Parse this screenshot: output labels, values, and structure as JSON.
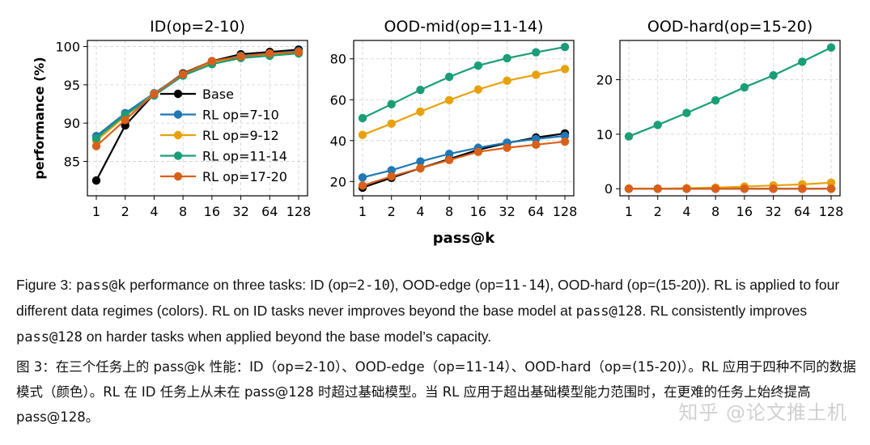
{
  "chart_data": [
    {
      "type": "line",
      "title": "ID(op=2-10)",
      "xlabel": "",
      "ylabel": "performance (%)",
      "x": [
        "1",
        "2",
        "4",
        "8",
        "16",
        "32",
        "64",
        "128"
      ],
      "yticks": [
        85,
        90,
        95,
        100
      ],
      "ylim": [
        80.5,
        100.8
      ],
      "grid": true,
      "legend": "center-left",
      "series": [
        {
          "name": "Base",
          "values": [
            82.5,
            89.7,
            93.8,
            96.5,
            98.1,
            99.0,
            99.3,
            99.6
          ]
        },
        {
          "name": "RL op=7-10",
          "values": [
            88.3,
            91.3,
            93.9,
            96.4,
            98.0,
            98.8,
            99.1,
            99.4
          ]
        },
        {
          "name": "RL op=9-12",
          "values": [
            87.7,
            90.9,
            93.8,
            96.3,
            97.9,
            98.7,
            99.0,
            99.2
          ]
        },
        {
          "name": "RL op=11-14",
          "values": [
            88.0,
            91.1,
            93.6,
            96.2,
            97.7,
            98.5,
            98.8,
            99.1
          ]
        },
        {
          "name": "RL op=17-20",
          "values": [
            87.0,
            90.4,
            93.8,
            96.4,
            98.1,
            98.7,
            99.1,
            99.3
          ]
        }
      ]
    },
    {
      "type": "line",
      "title": "OOD-mid(op=11-14)",
      "xlabel": "pass@k",
      "ylabel": "",
      "x": [
        "1",
        "2",
        "4",
        "8",
        "16",
        "32",
        "64",
        "128"
      ],
      "yticks": [
        20,
        40,
        60,
        80
      ],
      "ylim": [
        13,
        89
      ],
      "grid": true,
      "series": [
        {
          "name": "Base",
          "values": [
            17.0,
            21.8,
            26.5,
            31.0,
            35.5,
            38.8,
            41.5,
            43.5
          ]
        },
        {
          "name": "RL op=7-10",
          "values": [
            22.0,
            25.5,
            29.8,
            33.5,
            36.5,
            39.0,
            40.8,
            42.3
          ]
        },
        {
          "name": "RL op=9-12",
          "values": [
            42.8,
            48.3,
            54.2,
            59.8,
            65.0,
            69.3,
            72.2,
            75.0
          ]
        },
        {
          "name": "RL op=11-14",
          "values": [
            51.0,
            57.8,
            64.8,
            71.2,
            76.7,
            80.3,
            83.2,
            85.8
          ]
        },
        {
          "name": "RL op=17-20",
          "values": [
            18.0,
            22.5,
            26.5,
            30.5,
            34.5,
            36.5,
            38.0,
            39.5
          ]
        }
      ]
    },
    {
      "type": "line",
      "title": "OOD-hard(op=15-20)",
      "xlabel": "",
      "ylabel": "",
      "x": [
        "1",
        "2",
        "4",
        "8",
        "16",
        "32",
        "64",
        "128"
      ],
      "yticks": [
        0,
        10,
        20
      ],
      "ylim": [
        -1.3,
        27.2
      ],
      "grid": true,
      "series": [
        {
          "name": "Base",
          "values": [
            0.0,
            0.0,
            0.0,
            0.0,
            0.0,
            0.0,
            0.0,
            0.0
          ]
        },
        {
          "name": "RL op=7-10",
          "values": [
            0.0,
            0.0,
            0.0,
            0.0,
            0.0,
            0.0,
            0.0,
            0.0
          ]
        },
        {
          "name": "RL op=9-12",
          "values": [
            0.0,
            0.0,
            0.1,
            0.2,
            0.4,
            0.6,
            0.8,
            1.1
          ]
        },
        {
          "name": "RL op=11-14",
          "values": [
            9.6,
            11.7,
            13.9,
            16.2,
            18.6,
            20.8,
            23.3,
            25.9
          ]
        },
        {
          "name": "RL op=17-20",
          "values": [
            0.0,
            0.0,
            0.0,
            0.0,
            0.0,
            0.0,
            0.0,
            0.0
          ]
        }
      ]
    }
  ],
  "colors": {
    "Base": "#000000",
    "RL op=7-10": "#1f77b4",
    "RL op=9-12": "#e8a10c",
    "RL op=11-14": "#1a9e77",
    "RL op=17-20": "#d9601a"
  },
  "caption_en": {
    "prefix": "Figure 3: ",
    "passk": "pass@k",
    "part1": " performance on three tasks: ID (op=",
    "r1": "2-10",
    "part2": "), OOD-edge (op=",
    "r2": "11-14",
    "part3": "), OOD-hard (op=(15-20)). RL is applied to four different data regimes (colors). RL on ID tasks never improves beyond the base model at ",
    "pass128a": "pass@128",
    "part4": ". RL consistently improves ",
    "pass128b": "pass@128",
    "part5": " on harder tasks when applied beyond the base model’s capacity."
  },
  "caption_zh": "图 3：在三个任务上的 pass@k 性能：ID（op=2-10）、OOD-edge（op=11-14）、OOD-hard（op=(15-20)）。RL 应用于四种不同的数据模式（颜色）。RL 在 ID 任务上从未在 pass@128 时超过基础模型。当 RL 应用于超出基础模型能力范围时，在更难的任务上始终提高 pass@128。",
  "watermark": "知乎 @论文推土机"
}
